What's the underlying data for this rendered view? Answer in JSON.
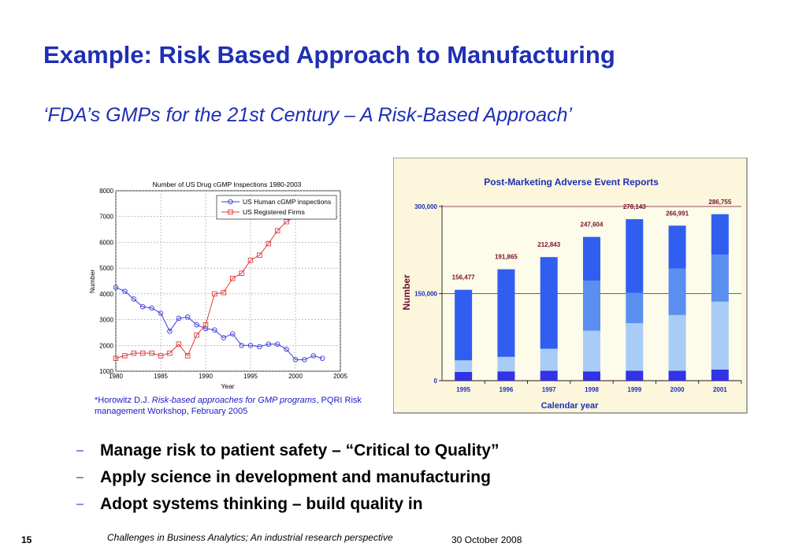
{
  "slide": {
    "title": "Example: Risk Based Approach to Manufacturing",
    "subtitle": "‘FDA’s GMPs for the 21st Century – A Risk-Based Approach’",
    "citation_prefix": "*Horowitz D.J. ",
    "citation_title": "Risk-based approaches for GMP programs",
    "citation_suffix": ", PQRI Risk management Workshop, February 2005",
    "bullets": [
      "Manage risk to patient safety – “Critical to Quality”",
      "Apply science in development and manufacturing",
      "Adopt systems thinking – build quality in"
    ],
    "bullet_marker": "–",
    "page_number": "15",
    "footer_text": "Challenges in Business Analytics; An industrial research perspective",
    "footer_date": "30 October 2008"
  },
  "chart_data": [
    {
      "type": "line",
      "title": "Number of US Drug cGMP Inspections 1980-2003",
      "xlabel": "Year",
      "ylabel": "Number",
      "xlim": [
        1980,
        2005
      ],
      "ylim": [
        1000,
        8000
      ],
      "xticks": [
        1980,
        1985,
        1990,
        1995,
        2000,
        2005
      ],
      "yticks": [
        1000,
        2000,
        3000,
        4000,
        5000,
        6000,
        7000,
        8000
      ],
      "grid": true,
      "legend_position": "top-right",
      "series": [
        {
          "name": "US Human cGMP inspections",
          "color": "#3a3adf",
          "marker": "circle",
          "x": [
            1980,
            1981,
            1982,
            1983,
            1984,
            1985,
            1986,
            1987,
            1988,
            1989,
            1990,
            1991,
            1992,
            1993,
            1994,
            1995,
            1996,
            1997,
            1998,
            1999,
            2000,
            2001,
            2002,
            2003
          ],
          "y": [
            4250,
            4100,
            3800,
            3500,
            3450,
            3250,
            2550,
            3050,
            3100,
            2800,
            2650,
            2600,
            2300,
            2450,
            2000,
            2000,
            1950,
            2050,
            2050,
            1850,
            1450,
            1450,
            1600,
            1500
          ]
        },
        {
          "name": "US Registered Firms",
          "color": "#e23a3a",
          "marker": "square",
          "x": [
            1980,
            1981,
            1982,
            1983,
            1984,
            1985,
            1986,
            1987,
            1988,
            1989,
            1990,
            1991,
            1992,
            1993,
            1994,
            1995,
            1996,
            1997,
            1998,
            1999,
            2000
          ],
          "y": [
            1500,
            1600,
            1700,
            1700,
            1700,
            1600,
            1700,
            2050,
            1600,
            2400,
            2800,
            4000,
            4050,
            4600,
            4800,
            5300,
            5500,
            5950,
            6450,
            6800,
            7000
          ]
        }
      ]
    },
    {
      "type": "bar",
      "stacked": true,
      "title": "Post-Marketing Adverse Event Reports",
      "xlabel": "Calendar year",
      "ylabel": "Number",
      "categories": [
        "1995",
        "1996",
        "1997",
        "1998",
        "1999",
        "2000",
        "2001"
      ],
      "totals": [
        156477,
        191865,
        212843,
        247604,
        278143,
        266991,
        286755
      ],
      "total_labels": [
        "156,477",
        "191,865",
        "212,843",
        "247,604",
        "278,143",
        "266,991",
        "286,755"
      ],
      "ylim": [
        0,
        300000
      ],
      "yticks": [
        0,
        150000,
        300000
      ],
      "ytick_labels": [
        "0",
        "150,000",
        "300,000"
      ],
      "segment_colors": [
        "#3232e8",
        "#a8ccf5",
        "#5a8ff0",
        "#2f5ef0"
      ],
      "segments": [
        [
          15000,
          16000,
          17000,
          16000,
          17000,
          17000,
          19000
        ],
        [
          20000,
          25000,
          38000,
          70000,
          82000,
          96000,
          117000
        ],
        [
          0,
          0,
          0,
          86000,
          52000,
          80000,
          81000
        ],
        [
          121477,
          150865,
          157843,
          75604,
          127143,
          73991,
          69755
        ]
      ],
      "background_color": "#fbf6dc"
    }
  ]
}
